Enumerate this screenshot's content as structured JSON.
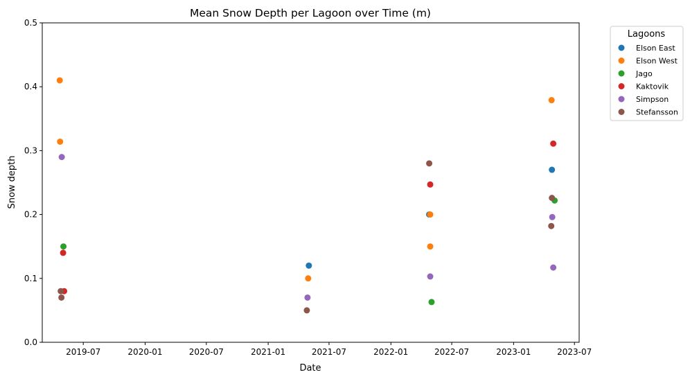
{
  "chart_data": {
    "type": "scatter",
    "title": "Mean Snow Depth per Lagoon over Time (m)",
    "xlabel": "Date",
    "ylabel": "Snow depth",
    "ylim": [
      0,
      0.5
    ],
    "yticks": [
      0.0,
      0.1,
      0.2,
      0.3,
      0.4,
      0.5
    ],
    "ytick_labels": [
      "0.0",
      "0.1",
      "0.2",
      "0.3",
      "0.4",
      "0.5"
    ],
    "xlim": [
      "2019-03-01",
      "2023-07-15"
    ],
    "xticks": [
      "2019-07-01",
      "2020-01-01",
      "2020-07-01",
      "2021-01-01",
      "2021-07-01",
      "2022-01-01",
      "2022-07-01",
      "2023-01-01",
      "2023-07-01"
    ],
    "xtick_labels": [
      "2019-07",
      "2020-01",
      "2020-07",
      "2021-01",
      "2021-07",
      "2022-01",
      "2022-07",
      "2023-01",
      "2023-07"
    ],
    "grid": false,
    "legend": {
      "title": "Lagoons",
      "placement": "outside-top-right"
    },
    "series": [
      {
        "name": "Elson East",
        "color": "#1f77b4",
        "points": [
          {
            "x": "2021-05-02",
            "y": 0.12
          },
          {
            "x": "2022-04-25",
            "y": 0.2
          },
          {
            "x": "2023-04-25",
            "y": 0.27
          }
        ]
      },
      {
        "name": "Elson West",
        "color": "#ff7f0e",
        "points": [
          {
            "x": "2019-04-22",
            "y": 0.41
          },
          {
            "x": "2019-04-23",
            "y": 0.314
          },
          {
            "x": "2021-04-30",
            "y": 0.1
          },
          {
            "x": "2022-04-28",
            "y": 0.2
          },
          {
            "x": "2022-04-28",
            "y": 0.15
          },
          {
            "x": "2023-04-24",
            "y": 0.379
          }
        ]
      },
      {
        "name": "Jago",
        "color": "#2ca02c",
        "points": [
          {
            "x": "2019-05-03",
            "y": 0.15
          },
          {
            "x": "2022-05-02",
            "y": 0.063
          },
          {
            "x": "2023-05-03",
            "y": 0.222
          }
        ]
      },
      {
        "name": "Kaktovik",
        "color": "#d62728",
        "points": [
          {
            "x": "2019-05-02",
            "y": 0.14
          },
          {
            "x": "2019-05-05",
            "y": 0.08
          },
          {
            "x": "2022-04-28",
            "y": 0.247
          },
          {
            "x": "2023-04-29",
            "y": 0.311
          }
        ]
      },
      {
        "name": "Simpson",
        "color": "#9467bd",
        "points": [
          {
            "x": "2019-04-28",
            "y": 0.29
          },
          {
            "x": "2021-04-28",
            "y": 0.07
          },
          {
            "x": "2022-04-28",
            "y": 0.103
          },
          {
            "x": "2023-04-26",
            "y": 0.196
          },
          {
            "x": "2023-04-29",
            "y": 0.117
          }
        ]
      },
      {
        "name": "Stefansson",
        "color": "#8c564b",
        "points": [
          {
            "x": "2019-04-25",
            "y": 0.08
          },
          {
            "x": "2019-04-27",
            "y": 0.07
          },
          {
            "x": "2021-04-26",
            "y": 0.05
          },
          {
            "x": "2022-04-25",
            "y": 0.28
          },
          {
            "x": "2023-04-25",
            "y": 0.226
          },
          {
            "x": "2023-04-23",
            "y": 0.182
          }
        ]
      }
    ]
  }
}
